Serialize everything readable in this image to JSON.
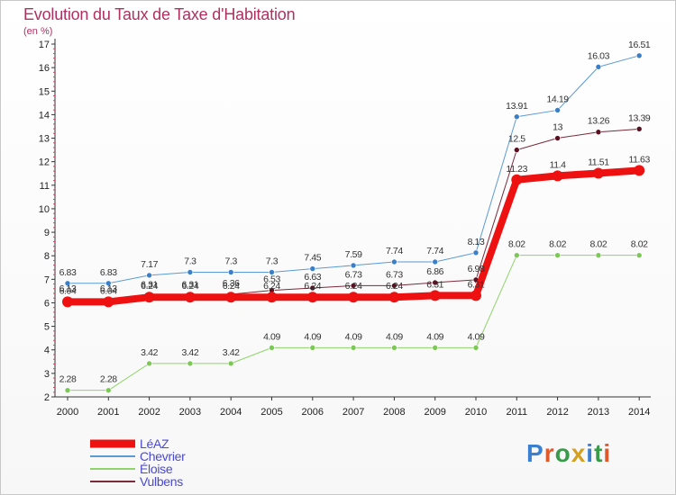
{
  "header": {
    "title": "Evolution du Taux de Taxe d'Habitation",
    "subtitle": "(en %)"
  },
  "logo": {
    "text": "Proxiti",
    "colors": [
      "#3a7fd0",
      "#e0592a",
      "#3a9a4a",
      "#d4a020",
      "#3a7fd0",
      "#3a9a4a",
      "#e0592a"
    ]
  },
  "chart_data": {
    "type": "line",
    "title": "Evolution du Taux de Taxe d'Habitation",
    "ylabel": "(en %)",
    "xlabel": "",
    "x": [
      "2000",
      "2001",
      "2002",
      "2003",
      "2004",
      "2005",
      "2006",
      "2007",
      "2008",
      "2009",
      "2010",
      "2011",
      "2012",
      "2013",
      "2014"
    ],
    "ylim": [
      2,
      17
    ],
    "yticks": [
      "2",
      "3",
      "4",
      "5",
      "6",
      "7",
      "8",
      "9",
      "10",
      "11",
      "12",
      "13",
      "14",
      "15",
      "16",
      "17"
    ],
    "grid": false,
    "legend": "bottom-left",
    "series": [
      {
        "name": "Chevrier",
        "color": "#5b9ad5",
        "marker": "#3a7fc8",
        "width": 1,
        "values": [
          6.83,
          6.83,
          7.17,
          7.3,
          7.3,
          7.3,
          7.45,
          7.59,
          7.74,
          7.74,
          8.13,
          13.91,
          14.19,
          16.03,
          16.51
        ],
        "labels": [
          "6.83",
          "6.83",
          "7.17",
          "7.3",
          "7.3",
          "7.3",
          "7.45",
          "7.59",
          "7.74",
          "7.74",
          "8.13",
          "13.91",
          "14.19",
          "16.03",
          "16.51"
        ]
      },
      {
        "name": "Vulbens",
        "color": "#7a2a3a",
        "marker": "#5a1020",
        "width": 1,
        "values": [
          6.13,
          6.13,
          6.31,
          6.31,
          6.36,
          6.53,
          6.63,
          6.73,
          6.73,
          6.86,
          6.98,
          12.5,
          13,
          13.26,
          13.39
        ],
        "labels": [
          "6.13",
          "6.13",
          "6.31",
          "6.31",
          "6.36",
          "6.53",
          "6.63",
          "6.73",
          "6.73",
          "6.86",
          "6.98",
          "12.5",
          "13",
          "13.26",
          "13.39"
        ]
      },
      {
        "name": "Éloise",
        "color": "#8fd46a",
        "marker": "#7cc855",
        "width": 1,
        "values": [
          2.28,
          2.28,
          3.42,
          3.42,
          3.42,
          4.09,
          4.09,
          4.09,
          4.09,
          4.09,
          4.09,
          8.02,
          8.02,
          8.02,
          8.02
        ],
        "labels": [
          "2.28",
          "2.28",
          "3.42",
          "3.42",
          "3.42",
          "4.09",
          "4.09",
          "4.09",
          "4.09",
          "4.09",
          "4.09",
          "8.02",
          "8.02",
          "8.02",
          "8.02"
        ]
      },
      {
        "name": "LéAZ",
        "color": "#ee1111",
        "marker": "#ee1111",
        "width": 8,
        "values": [
          6.04,
          6.04,
          6.24,
          6.24,
          6.24,
          6.24,
          6.24,
          6.24,
          6.24,
          6.31,
          6.31,
          11.23,
          11.4,
          11.51,
          11.63
        ],
        "labels": [
          "6.04",
          "6.04",
          "6.24",
          "6.24",
          "6.24",
          "6.24",
          "6.24",
          "6.24",
          "6.24",
          "6.31",
          "6.31",
          "11.23",
          "11.4",
          "11.51",
          "11.63"
        ]
      }
    ],
    "legend_order": [
      "LéAZ",
      "Chevrier",
      "Éloise",
      "Vulbens"
    ]
  }
}
